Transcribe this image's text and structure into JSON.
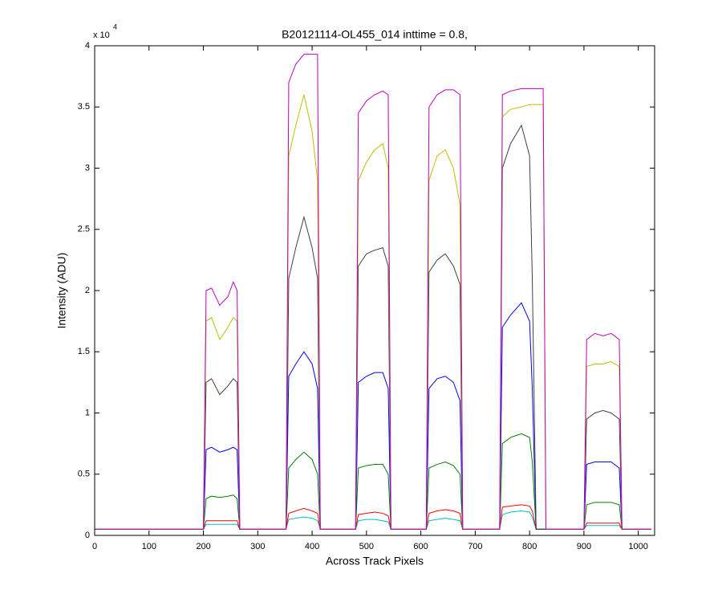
{
  "chart_data": {
    "type": "line",
    "title": "B20121114-OL455_014 inttime = 0.8,",
    "x_label": "Across Track Pixels",
    "y_label": "Intensity (ADU)",
    "y_multiplier": {
      "base": "x 10",
      "power": "4"
    },
    "xlim": [
      0,
      1030
    ],
    "xticks": [
      0,
      100,
      200,
      300,
      400,
      500,
      600,
      700,
      800,
      900,
      1000
    ],
    "ylim": [
      0,
      4
    ],
    "yticks": [
      0,
      0.5,
      1,
      1.5,
      2,
      2.5,
      3,
      3.5,
      4
    ],
    "grid": false,
    "x": [
      0,
      195,
      200,
      205,
      215,
      230,
      245,
      255,
      262,
      267,
      345,
      352,
      357,
      370,
      385,
      400,
      410,
      415,
      475,
      480,
      485,
      500,
      515,
      530,
      540,
      545,
      605,
      610,
      615,
      630,
      645,
      660,
      672,
      677,
      740,
      745,
      750,
      765,
      785,
      800,
      805,
      812,
      825,
      830,
      895,
      900,
      905,
      920,
      935,
      950,
      965,
      970,
      1024
    ],
    "series": [
      {
        "color": "#bf00bf",
        "values": [
          0.05,
          0.05,
          0.05,
          2.0,
          2.02,
          1.88,
          1.95,
          2.07,
          2.0,
          0.05,
          0.05,
          0.05,
          3.7,
          3.85,
          3.93,
          3.93,
          3.93,
          0.05,
          0.05,
          0.05,
          3.45,
          3.55,
          3.6,
          3.63,
          3.6,
          0.05,
          0.05,
          0.05,
          3.5,
          3.6,
          3.64,
          3.64,
          3.6,
          0.05,
          0.05,
          0.05,
          3.6,
          3.63,
          3.65,
          3.65,
          3.65,
          3.65,
          3.65,
          0.05,
          0.05,
          0.05,
          1.6,
          1.65,
          1.63,
          1.65,
          1.6,
          0.05,
          0.05
        ]
      },
      {
        "color": "#bfbf00",
        "values": [
          0.05,
          0.05,
          0.05,
          1.75,
          1.78,
          1.6,
          1.7,
          1.78,
          1.75,
          0.05,
          0.05,
          0.05,
          3.1,
          3.35,
          3.6,
          3.3,
          2.9,
          0.05,
          0.05,
          0.05,
          2.9,
          3.05,
          3.15,
          3.2,
          3.0,
          0.05,
          0.05,
          0.05,
          2.9,
          3.1,
          3.15,
          3.0,
          2.7,
          0.05,
          0.05,
          0.05,
          3.42,
          3.48,
          3.5,
          3.52,
          3.52,
          3.52,
          3.52,
          0.05,
          0.05,
          0.05,
          1.38,
          1.4,
          1.4,
          1.42,
          1.38,
          0.05,
          0.05
        ]
      },
      {
        "color": "#404040",
        "values": [
          0.05,
          0.05,
          0.05,
          1.25,
          1.28,
          1.15,
          1.22,
          1.28,
          1.25,
          0.05,
          0.05,
          0.05,
          2.1,
          2.35,
          2.6,
          2.35,
          2.1,
          0.05,
          0.05,
          0.05,
          2.2,
          2.3,
          2.33,
          2.35,
          2.2,
          0.05,
          0.05,
          0.05,
          2.15,
          2.25,
          2.3,
          2.2,
          2.05,
          0.05,
          0.05,
          0.05,
          3.0,
          3.2,
          3.35,
          3.1,
          2.1,
          0.05,
          0.05,
          0.05,
          0.05,
          0.05,
          0.95,
          1.0,
          1.02,
          1.0,
          0.95,
          0.05,
          0.05
        ]
      },
      {
        "color": "#0000ff",
        "values": [
          0.05,
          0.05,
          0.05,
          0.7,
          0.72,
          0.68,
          0.7,
          0.72,
          0.7,
          0.05,
          0.05,
          0.05,
          1.3,
          1.4,
          1.5,
          1.4,
          1.2,
          0.05,
          0.05,
          0.05,
          1.25,
          1.3,
          1.33,
          1.33,
          1.2,
          0.05,
          0.05,
          0.05,
          1.2,
          1.28,
          1.3,
          1.25,
          1.1,
          0.05,
          0.05,
          0.05,
          1.7,
          1.8,
          1.9,
          1.75,
          1.2,
          0.05,
          0.05,
          0.05,
          0.05,
          0.05,
          0.58,
          0.6,
          0.6,
          0.6,
          0.55,
          0.05,
          0.05
        ]
      },
      {
        "color": "#008000",
        "values": [
          0.05,
          0.05,
          0.05,
          0.3,
          0.32,
          0.31,
          0.32,
          0.33,
          0.3,
          0.05,
          0.05,
          0.05,
          0.55,
          0.62,
          0.68,
          0.62,
          0.5,
          0.05,
          0.05,
          0.05,
          0.55,
          0.57,
          0.58,
          0.58,
          0.5,
          0.05,
          0.05,
          0.05,
          0.55,
          0.58,
          0.6,
          0.57,
          0.5,
          0.05,
          0.05,
          0.05,
          0.75,
          0.8,
          0.83,
          0.8,
          0.6,
          0.05,
          0.05,
          0.05,
          0.05,
          0.05,
          0.25,
          0.27,
          0.27,
          0.27,
          0.25,
          0.05,
          0.05
        ]
      },
      {
        "color": "#ff0000",
        "values": [
          0.05,
          0.05,
          0.05,
          0.12,
          0.12,
          0.12,
          0.12,
          0.12,
          0.12,
          0.05,
          0.05,
          0.05,
          0.18,
          0.2,
          0.22,
          0.2,
          0.18,
          0.05,
          0.05,
          0.05,
          0.17,
          0.18,
          0.19,
          0.18,
          0.16,
          0.05,
          0.05,
          0.05,
          0.18,
          0.2,
          0.21,
          0.2,
          0.18,
          0.05,
          0.05,
          0.05,
          0.23,
          0.24,
          0.25,
          0.24,
          0.2,
          0.05,
          0.05,
          0.05,
          0.05,
          0.05,
          0.1,
          0.1,
          0.1,
          0.1,
          0.1,
          0.05,
          0.05
        ]
      },
      {
        "color": "#00bfbf",
        "values": [
          0.05,
          0.05,
          0.05,
          0.09,
          0.09,
          0.09,
          0.09,
          0.09,
          0.09,
          0.05,
          0.05,
          0.05,
          0.13,
          0.14,
          0.15,
          0.14,
          0.12,
          0.05,
          0.05,
          0.05,
          0.12,
          0.13,
          0.13,
          0.12,
          0.11,
          0.05,
          0.05,
          0.05,
          0.12,
          0.13,
          0.14,
          0.13,
          0.12,
          0.05,
          0.05,
          0.05,
          0.17,
          0.19,
          0.2,
          0.19,
          0.15,
          0.05,
          0.05,
          0.05,
          0.05,
          0.05,
          0.08,
          0.08,
          0.08,
          0.08,
          0.08,
          0.05,
          0.05
        ]
      }
    ]
  }
}
